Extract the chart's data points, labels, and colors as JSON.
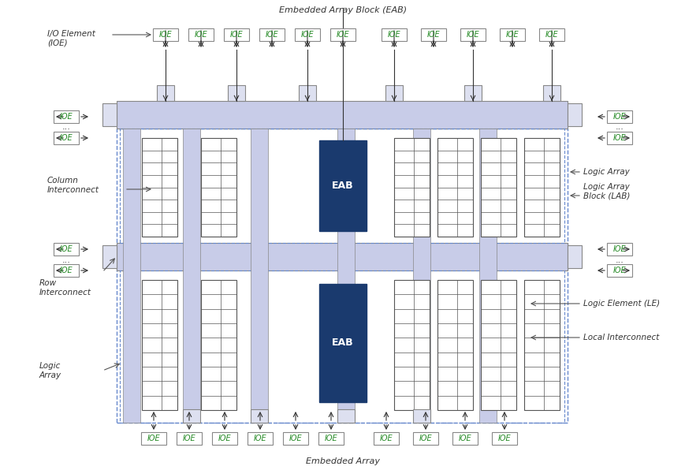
{
  "fig_width": 8.7,
  "fig_height": 5.96,
  "bg_color": "#ffffff",
  "lavender": "#c8cce8",
  "lavender_light": "#dde0f0",
  "dark_blue": "#1a3a6e",
  "medium_blue": "#2e4d8e",
  "gray_border": "#888888",
  "ioe_border": "#888888",
  "ioe_fill": "#ffffff",
  "ioe_text_color": "#228822",
  "dashed_border": "#6688cc",
  "lab_grid_fill": "#ffffff",
  "lab_grid_border": "#555555",
  "annotation_color": "#555555",
  "arrow_color": "#333333",
  "title_top": "Embedded Array Block (EAB)",
  "title_bottom": "Embedded Array",
  "label_ioe": "I/O Element\n(IOE)",
  "label_column": "Column\nInterconnect",
  "label_row": "Row\nInterconnect",
  "label_logic_array": "Logic\nArray",
  "label_logic_array_right": "Logic Array",
  "label_lab": "Logic Array\nBlock (LAB)",
  "label_le": "Logic Element (LE)",
  "label_local": "Local Interconnect",
  "eab_text": "EAB",
  "font_size_label": 7.5,
  "font_size_ioe": 7,
  "font_size_title": 8,
  "font_size_eab": 9
}
